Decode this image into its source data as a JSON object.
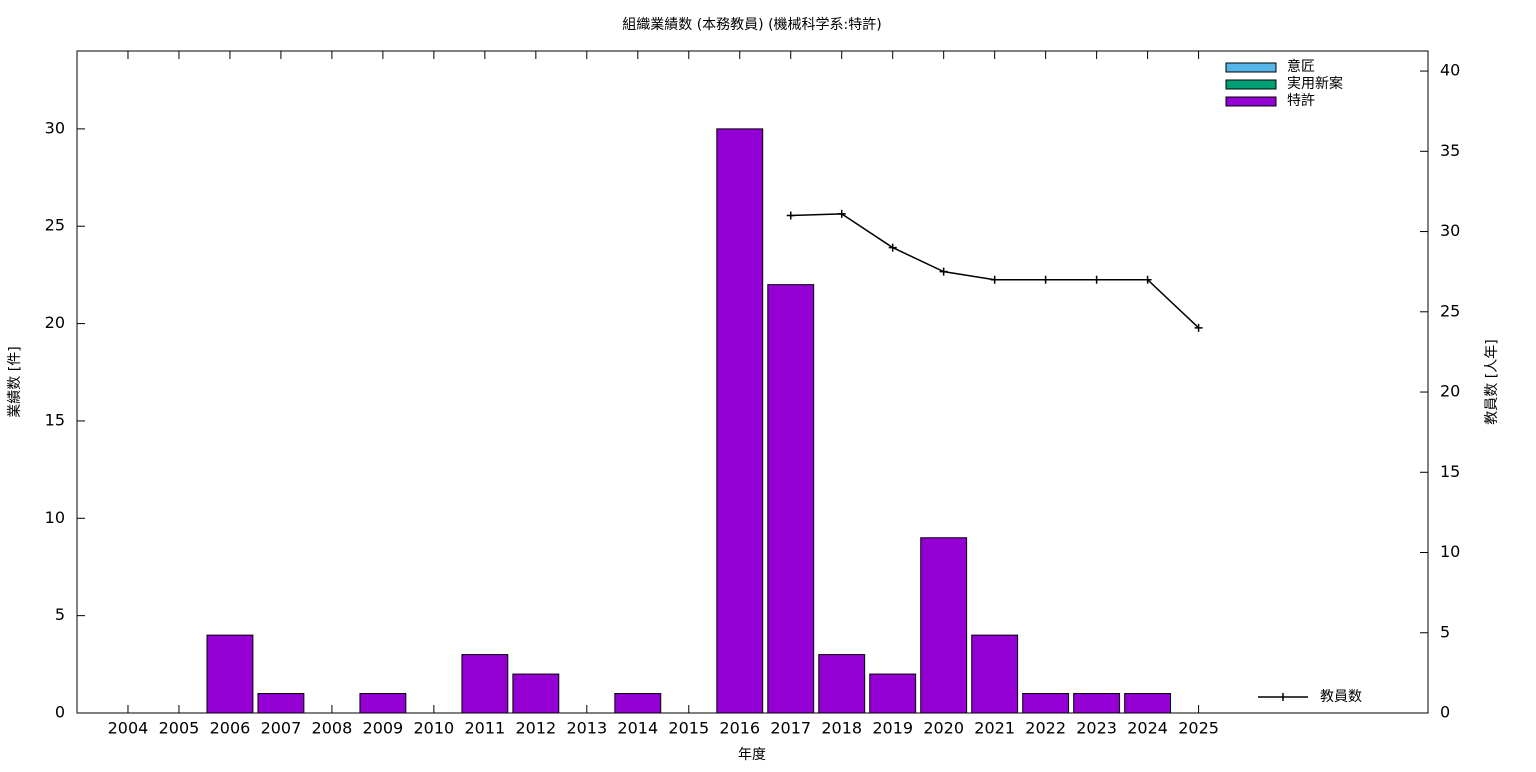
{
  "chart_data": {
    "type": "bar",
    "stacked": true,
    "title": "組織業績数 (本務教員) (機械科学系:特許)",
    "x_label": "年度",
    "y_label": "業績数 [件]",
    "y2_label": "教員数 [人年]",
    "categories": [
      "2004",
      "2005",
      "2006",
      "2007",
      "2008",
      "2009",
      "2010",
      "2011",
      "2012",
      "2013",
      "2014",
      "2015",
      "2016",
      "2017",
      "2018",
      "2019",
      "2020",
      "2021",
      "2022",
      "2023",
      "2024",
      "2025"
    ],
    "series": [
      {
        "name": "意匠",
        "color": "#56b4e9",
        "values": [
          0,
          0,
          0,
          0,
          0,
          0,
          0,
          0,
          0,
          0,
          0,
          0,
          0,
          0,
          0,
          0,
          0,
          0,
          0,
          0,
          0,
          0
        ]
      },
      {
        "name": "実用新案",
        "color": "#009e73",
        "values": [
          0,
          0,
          0,
          0,
          0,
          0,
          0,
          0,
          0,
          0,
          0,
          0,
          0,
          0,
          0,
          0,
          0,
          0,
          0,
          0,
          0,
          0
        ]
      },
      {
        "name": "特許",
        "color": "#9400d3",
        "values": [
          0,
          0,
          4,
          1,
          0,
          1,
          0,
          3,
          2,
          0,
          1,
          0,
          30,
          22,
          3,
          2,
          9,
          4,
          1,
          1,
          1,
          0
        ]
      },
      {
        "name": "教員数",
        "type": "line",
        "axis": "y2",
        "color": "#000000",
        "values": [
          null,
          null,
          null,
          null,
          null,
          null,
          null,
          null,
          null,
          null,
          null,
          null,
          null,
          31,
          31.1,
          29,
          27.5,
          27,
          27,
          27,
          27,
          24
        ]
      }
    ],
    "ylim": [
      0,
      34
    ],
    "yticks": [
      0,
      5,
      10,
      15,
      20,
      25,
      30
    ],
    "y2lim": [
      0,
      41.25
    ],
    "y2ticks": [
      0,
      5,
      10,
      15,
      20,
      25,
      30,
      35,
      40
    ],
    "legend": "top-right"
  }
}
